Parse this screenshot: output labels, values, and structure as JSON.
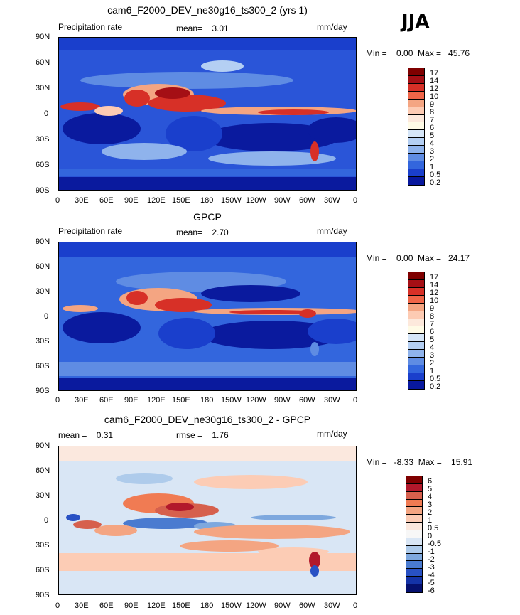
{
  "season": "JJA",
  "panels": [
    {
      "title": "cam6_F2000_DEV_ne30g16_ts300_2 (yrs 1)",
      "left_label": "Precipitation rate",
      "center_label": "mean=    3.01",
      "units": "mm/day",
      "minmax": "Min =    0.00  Max =   45.76",
      "colorbar_labels": [
        "17",
        "14",
        "12",
        "10",
        "9",
        "8",
        "7",
        "6",
        "5",
        "4",
        "3",
        "2",
        "1",
        "0.5",
        "0.2"
      ]
    },
    {
      "title": "GPCP",
      "left_label": "Precipitation rate",
      "center_label": "mean=    2.70",
      "units": "mm/day",
      "minmax": "Min =    0.00  Max =   24.17",
      "colorbar_labels": [
        "17",
        "14",
        "12",
        "10",
        "9",
        "8",
        "7",
        "6",
        "5",
        "4",
        "3",
        "2",
        "1",
        "0.5",
        "0.2"
      ]
    },
    {
      "title": "cam6_F2000_DEV_ne30g16_ts300_2 - GPCP",
      "left_label": "mean =    0.31",
      "center_label": "rmse =    1.76",
      "units": "mm/day",
      "minmax": "Min =   -8.33  Max =    15.91",
      "colorbar_labels": [
        "6",
        "5",
        "4",
        "3",
        "2",
        "1",
        "0.5",
        "0",
        "-0.5",
        "-1",
        "-2",
        "-3",
        "-4",
        "-5",
        "-6"
      ]
    }
  ],
  "lat_ticks": [
    "90N",
    "60N",
    "30N",
    "0",
    "30S",
    "60S",
    "90S"
  ],
  "lon_ticks": [
    "0",
    "30E",
    "60E",
    "90E",
    "120E",
    "150E",
    "180",
    "150W",
    "120W",
    "90W",
    "60W",
    "30W",
    "0"
  ],
  "colors": {
    "precip_scale": [
      "#7f0000",
      "#a50f15",
      "#d73027",
      "#ef6548",
      "#f4a582",
      "#fdcbb3",
      "#fde9dc",
      "#fffbe6",
      "#d6e6f8",
      "#b4cff3",
      "#8fb3ec",
      "#5f8ce3",
      "#3366dd",
      "#1a3fcc",
      "#08189e"
    ],
    "diff_scale": [
      "#7f0000",
      "#b2182b",
      "#d6604d",
      "#f07b53",
      "#f4a582",
      "#fcccb5",
      "#fbe8de",
      "#f7f7f7",
      "#d9e6f5",
      "#aecbeb",
      "#7ea8de",
      "#4a7bd0",
      "#2851c4",
      "#1433a8",
      "#05106e"
    ]
  }
}
